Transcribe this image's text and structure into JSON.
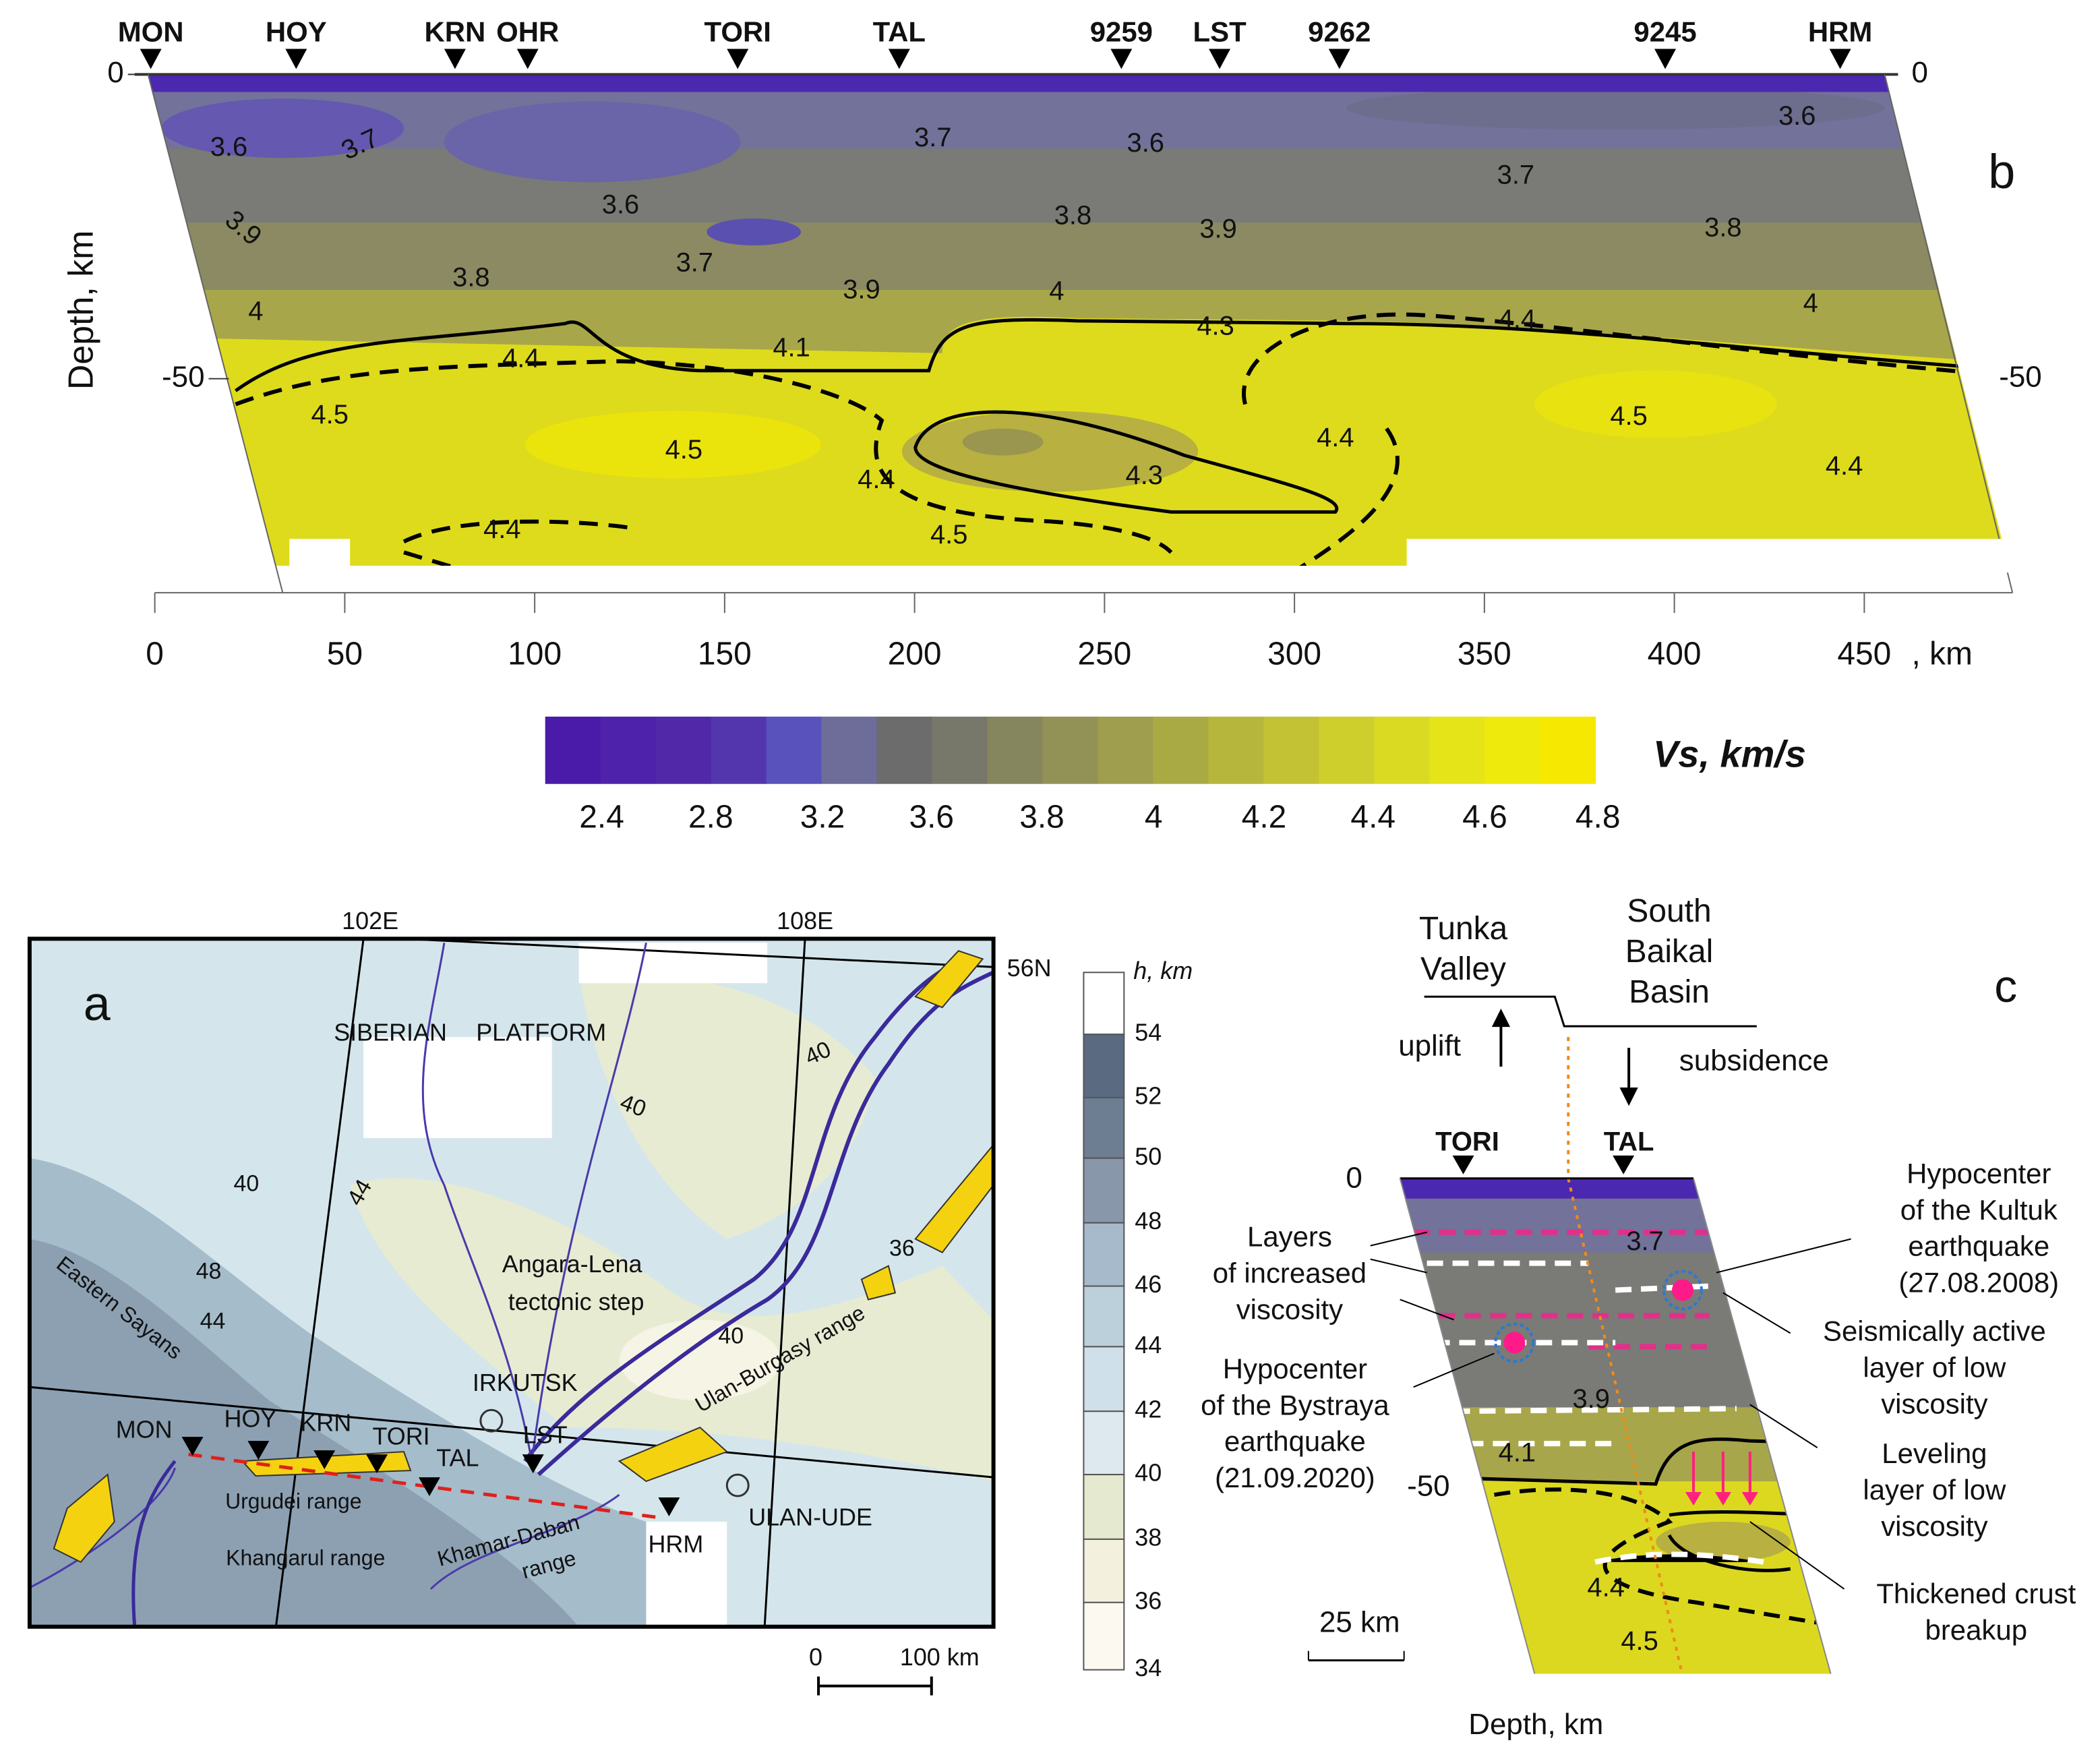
{
  "panel_b": {
    "label": "b",
    "stations": [
      "MON",
      "HOY",
      "KRN",
      "OHR",
      "TORI",
      "TAL",
      "9259",
      "LST",
      "9262",
      "9245",
      "HRM"
    ],
    "y_label": "Depth, km",
    "y_ticks": [
      0,
      -50
    ],
    "x_ticks": [
      0,
      50,
      100,
      150,
      200,
      250,
      300,
      350,
      400,
      450
    ],
    "x_unit": ", km",
    "contour_labels": [
      "3.6",
      "3.7",
      "3.7",
      "3.6",
      "3.6",
      "3.7",
      "3.6",
      "3.8",
      "3.9",
      "3.8",
      "3.9",
      "3.7",
      "3.8",
      "3.9",
      "4",
      "4",
      "4",
      "4.3",
      "4.4",
      "4.4",
      "4.1",
      "4.5",
      "4.5",
      "4.4",
      "4.5",
      "4.4",
      "4.3",
      "4.4",
      "4.4",
      "4.5"
    ]
  },
  "colorbar": {
    "title": "Vs, km/s",
    "ticks": [
      2.4,
      2.8,
      3.2,
      3.6,
      3.8,
      4,
      4.2,
      4.4,
      4.6,
      4.8
    ]
  },
  "panel_a": {
    "label": "a",
    "lon_labels": [
      "102E",
      "108E"
    ],
    "lat_label": "56N",
    "region_labels": [
      "SIBERIAN",
      "PLATFORM",
      "Angara-Lena",
      "tectonic step",
      "Eastern Sayans",
      "Ulan-Burgasy range",
      "Urgudei range",
      "Khangarul range",
      "Khamar-Daban",
      "range"
    ],
    "cities": [
      "IRKUTSK",
      "ULAN-UDE"
    ],
    "stations": [
      "MON",
      "HOY",
      "KRN",
      "TORI",
      "TAL",
      "LST",
      "HRM"
    ],
    "contour_labels": [
      "40",
      "40",
      "40",
      "44",
      "48",
      "44",
      "36",
      "40"
    ],
    "scale": [
      "0",
      "100 km"
    ],
    "legend_title": "h, km",
    "legend_ticks": [
      54,
      52,
      50,
      48,
      46,
      44,
      42,
      40,
      38,
      36,
      34
    ]
  },
  "panel_c": {
    "label": "c",
    "left_block": [
      "Tunka",
      "Valley"
    ],
    "right_block": [
      "South",
      "Baikal",
      "Basin"
    ],
    "uplift": "uplift",
    "subsidence": "subsidence",
    "stations": [
      "TORI",
      "TAL"
    ],
    "y_ticks": [
      0,
      -50
    ],
    "contour_labels": [
      "3.7",
      "3.9",
      "4.1",
      "4.4",
      "4.5"
    ],
    "layers": [
      "Layers",
      "of increased",
      "viscosity"
    ],
    "bystraya": [
      "Hypocenter",
      "of the Bystraya",
      "earthquake",
      "(21.09.2020)"
    ],
    "kultuk": [
      "Hypocenter",
      "of the Kultuk",
      "earthquake",
      "(27.08.2008)"
    ],
    "seismic": [
      "Seismically active",
      "layer of low",
      "viscosity"
    ],
    "leveling": [
      "Leveling",
      "layer of low",
      "viscosity"
    ],
    "thickened": [
      "Thickened crust",
      "breakup"
    ],
    "scale": "25 km",
    "depth_label": "Depth, km"
  }
}
